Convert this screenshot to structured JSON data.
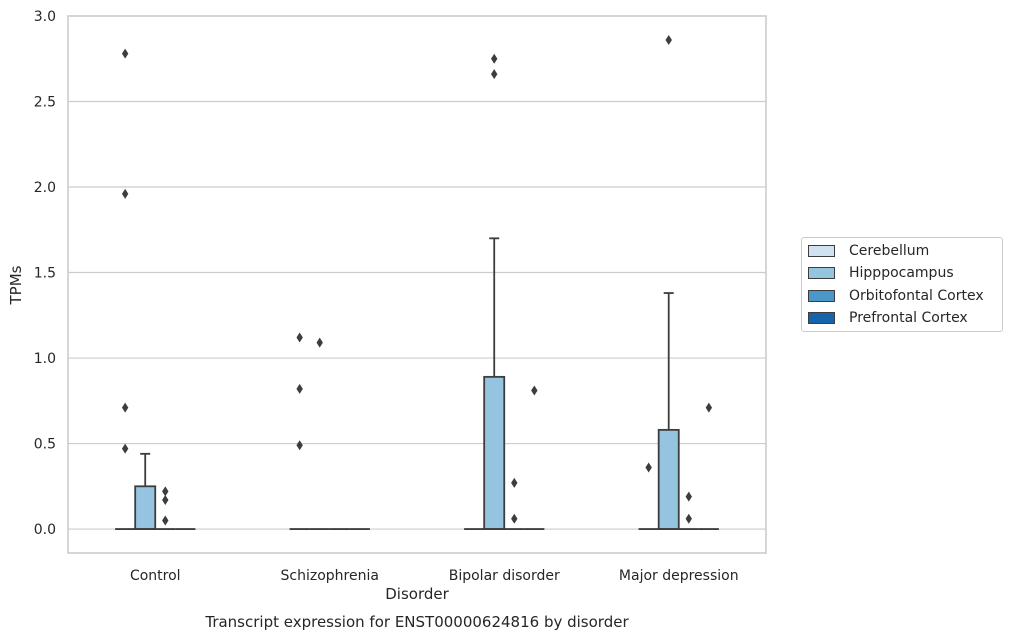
{
  "chart_data": {
    "type": "box",
    "title": "",
    "caption": "Transcript expression for ENST00000624816 by disorder",
    "xlabel": "Disorder",
    "ylabel": "TPMs",
    "categories": [
      "Control",
      "Schizophrenia",
      "Bipolar disorder",
      "Major depression"
    ],
    "ylim": [
      -0.14,
      3.0
    ],
    "yticks": [
      "0.0",
      "0.5",
      "1.0",
      "1.5",
      "2.0",
      "2.5",
      "3.0"
    ],
    "ytick_values": [
      0,
      0.5,
      1.0,
      1.5,
      2.0,
      2.5,
      3.0
    ],
    "grid": "horizontal",
    "legend_position": "right",
    "series": [
      {
        "name": "Cerebellum",
        "color": "#d0e1f2",
        "boxes": [
          {
            "q1": 0,
            "median": 0,
            "q3": 0,
            "whisker_low": 0,
            "whisker_high": 0,
            "outliers": [
              0.47,
              0.71,
              1.96,
              2.78
            ]
          },
          {
            "q1": 0,
            "median": 0,
            "q3": 0,
            "whisker_low": 0,
            "whisker_high": 0,
            "outliers": [
              0.49,
              0.82,
              1.12
            ]
          },
          {
            "q1": 0,
            "median": 0,
            "q3": 0,
            "whisker_low": 0,
            "whisker_high": 0,
            "outliers": []
          },
          {
            "q1": 0,
            "median": 0,
            "q3": 0,
            "whisker_low": 0,
            "whisker_high": 0,
            "outliers": [
              0.36
            ]
          }
        ]
      },
      {
        "name": "Hipppocampus",
        "color": "#94c4df",
        "boxes": [
          {
            "q1": 0,
            "median": 0,
            "q3": 0.25,
            "whisker_low": 0,
            "whisker_high": 0.44,
            "outliers": []
          },
          {
            "q1": 0,
            "median": 0,
            "q3": 0,
            "whisker_low": 0,
            "whisker_high": 0,
            "outliers": [
              1.09
            ]
          },
          {
            "q1": 0,
            "median": 0,
            "q3": 0.89,
            "whisker_low": 0,
            "whisker_high": 1.7,
            "outliers": [
              2.66,
              2.75
            ]
          },
          {
            "q1": 0,
            "median": 0,
            "q3": 0.58,
            "whisker_low": 0,
            "whisker_high": 1.38,
            "outliers": [
              2.86
            ]
          }
        ]
      },
      {
        "name": "Orbitofontal Cortex",
        "color": "#4a98c9",
        "boxes": [
          {
            "q1": 0,
            "median": 0,
            "q3": 0,
            "whisker_low": 0,
            "whisker_high": 0,
            "outliers": [
              0.05,
              0.17,
              0.22
            ]
          },
          {
            "q1": 0,
            "median": 0,
            "q3": 0,
            "whisker_low": 0,
            "whisker_high": 0,
            "outliers": []
          },
          {
            "q1": 0,
            "median": 0,
            "q3": 0,
            "whisker_low": 0,
            "whisker_high": 0,
            "outliers": [
              0.06,
              0.27
            ]
          },
          {
            "q1": 0,
            "median": 0,
            "q3": 0,
            "whisker_low": 0,
            "whisker_high": 0,
            "outliers": [
              0.06,
              0.19
            ]
          }
        ]
      },
      {
        "name": "Prefrontal Cortex",
        "color": "#1764ab",
        "boxes": [
          {
            "q1": 0,
            "median": 0,
            "q3": 0,
            "whisker_low": 0,
            "whisker_high": 0,
            "outliers": []
          },
          {
            "q1": 0,
            "median": 0,
            "q3": 0,
            "whisker_low": 0,
            "whisker_high": 0,
            "outliers": []
          },
          {
            "q1": 0,
            "median": 0,
            "q3": 0,
            "whisker_low": 0,
            "whisker_high": 0,
            "outliers": [
              0.81
            ]
          },
          {
            "q1": 0,
            "median": 0,
            "q3": 0,
            "whisker_low": 0,
            "whisker_high": 0,
            "outliers": [
              0.71
            ]
          }
        ]
      }
    ]
  }
}
